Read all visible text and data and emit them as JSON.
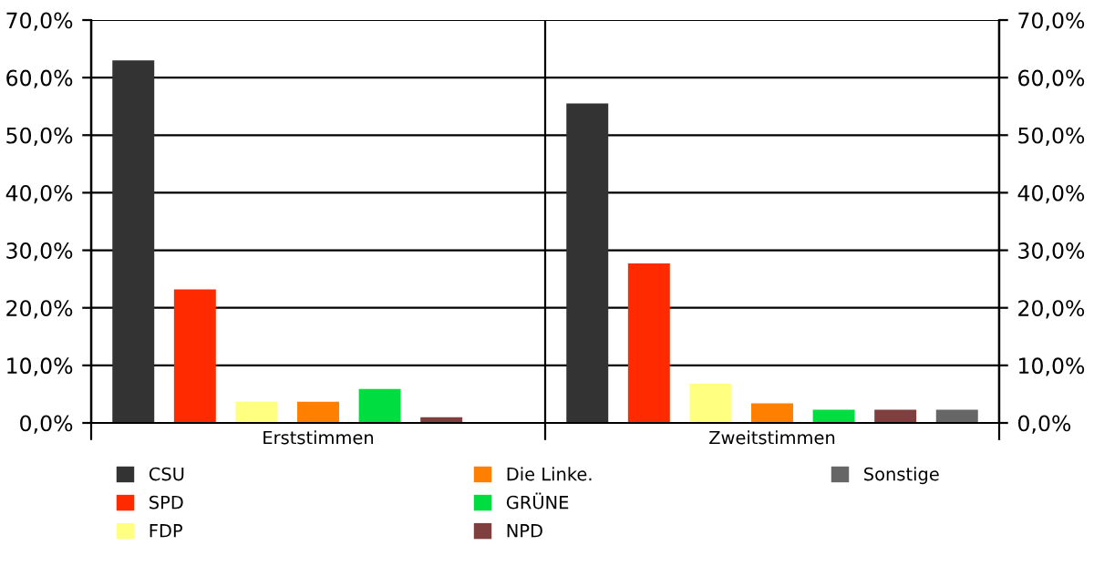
{
  "chart_data": {
    "type": "bar",
    "categories": [
      "Erststimmen",
      "Zweitstimmen"
    ],
    "series": [
      {
        "name": "CSU",
        "color": "#333333",
        "values": [
          63.0,
          55.5
        ]
      },
      {
        "name": "SPD",
        "color": "#ff2a00",
        "values": [
          23.2,
          27.7
        ]
      },
      {
        "name": "FDP",
        "color": "#ffff80",
        "values": [
          3.7,
          6.8
        ]
      },
      {
        "name": "Die Linke.",
        "color": "#ff8000",
        "values": [
          3.7,
          3.4
        ]
      },
      {
        "name": "GRÜNE",
        "color": "#00dd40",
        "values": [
          5.9,
          2.3
        ]
      },
      {
        "name": "NPD",
        "color": "#7f3f3f",
        "values": [
          1.0,
          2.3
        ]
      },
      {
        "name": "Sonstige",
        "color": "#666666",
        "values": [
          null,
          2.3
        ]
      }
    ],
    "ylim": [
      0,
      70
    ],
    "yticks": [
      {
        "value": 0,
        "label": "0,0%"
      },
      {
        "value": 10,
        "label": "10,0%"
      },
      {
        "value": 20,
        "label": "20,0%"
      },
      {
        "value": 30,
        "label": "30,0%"
      },
      {
        "value": 40,
        "label": "40,0%"
      },
      {
        "value": 50,
        "label": "50,0%"
      },
      {
        "value": 60,
        "label": "60,0%"
      },
      {
        "value": 70,
        "label": "70,0%"
      }
    ],
    "y2lim": [
      0,
      70
    ],
    "y2ticks": [
      {
        "value": 0,
        "label": "0,0%"
      },
      {
        "value": 10,
        "label": "10,0%"
      },
      {
        "value": 20,
        "label": "20,0%"
      },
      {
        "value": 30,
        "label": "30,0%"
      },
      {
        "value": 40,
        "label": "40,0%"
      },
      {
        "value": 50,
        "label": "50,0%"
      },
      {
        "value": 60,
        "label": "60,0%"
      },
      {
        "value": 70,
        "label": "70,0%"
      }
    ],
    "grid": true,
    "legend": "bottom"
  }
}
